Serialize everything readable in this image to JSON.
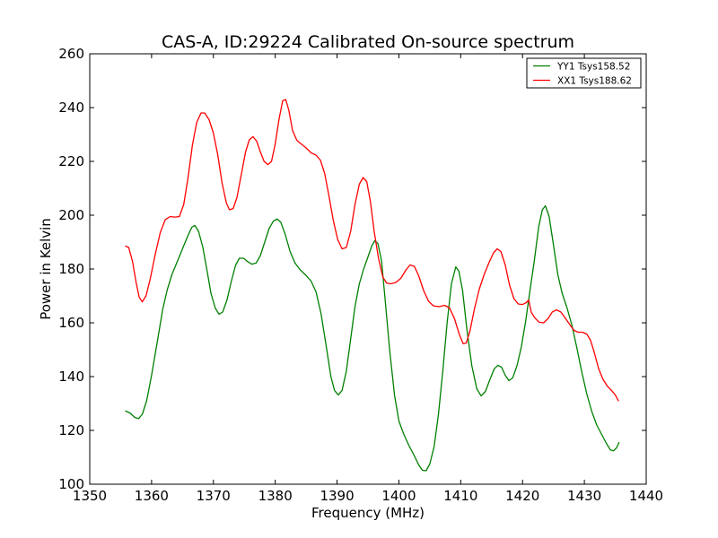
{
  "chart_data": {
    "type": "line",
    "title": "CAS-A, ID:29224 Calibrated On-source spectrum",
    "xlabel": "Frequency (MHz)",
    "ylabel": "Power in Kelvin",
    "xlim": [
      1350,
      1440
    ],
    "ylim": [
      100,
      260
    ],
    "xticks": [
      1350,
      1360,
      1370,
      1380,
      1390,
      1400,
      1410,
      1420,
      1430,
      1440
    ],
    "yticks": [
      100,
      120,
      140,
      160,
      180,
      200,
      220,
      240,
      260
    ],
    "grid": false,
    "legend_position": "top-right",
    "series": [
      {
        "name": "YY1 Tsys158.52",
        "color": "#008000",
        "points": [
          [
            1355.8,
            127.2
          ],
          [
            1356.5,
            126.5
          ],
          [
            1357.3,
            124.8
          ],
          [
            1357.9,
            124.4
          ],
          [
            1358.5,
            126.0
          ],
          [
            1359.2,
            131.0
          ],
          [
            1360.0,
            140.5
          ],
          [
            1361.0,
            154.0
          ],
          [
            1361.8,
            165.0
          ],
          [
            1362.5,
            172.0
          ],
          [
            1363.3,
            178.0
          ],
          [
            1364.2,
            183.0
          ],
          [
            1365.0,
            187.5
          ],
          [
            1365.8,
            192.0
          ],
          [
            1366.5,
            195.5
          ],
          [
            1367.0,
            196.2
          ],
          [
            1367.6,
            194.0
          ],
          [
            1368.3,
            188.0
          ],
          [
            1369.0,
            179.0
          ],
          [
            1369.6,
            171.0
          ],
          [
            1370.3,
            165.5
          ],
          [
            1370.9,
            163.2
          ],
          [
            1371.5,
            164.0
          ],
          [
            1372.2,
            168.5
          ],
          [
            1372.9,
            175.5
          ],
          [
            1373.6,
            181.5
          ],
          [
            1374.2,
            184.0
          ],
          [
            1374.9,
            184.0
          ],
          [
            1375.5,
            182.8
          ],
          [
            1376.2,
            181.8
          ],
          [
            1376.9,
            182.2
          ],
          [
            1377.6,
            185.0
          ],
          [
            1378.3,
            190.0
          ],
          [
            1379.0,
            195.0
          ],
          [
            1379.7,
            197.8
          ],
          [
            1380.3,
            198.6
          ],
          [
            1380.9,
            197.4
          ],
          [
            1381.6,
            193.0
          ],
          [
            1382.4,
            186.5
          ],
          [
            1383.2,
            182.2
          ],
          [
            1384.0,
            179.8
          ],
          [
            1384.9,
            177.8
          ],
          [
            1385.8,
            175.5
          ],
          [
            1386.6,
            171.5
          ],
          [
            1387.4,
            163.5
          ],
          [
            1388.2,
            152.0
          ],
          [
            1389.0,
            140.0
          ],
          [
            1389.6,
            134.8
          ],
          [
            1390.2,
            133.2
          ],
          [
            1390.8,
            134.8
          ],
          [
            1391.5,
            142.0
          ],
          [
            1392.2,
            154.0
          ],
          [
            1392.9,
            166.0
          ],
          [
            1393.6,
            174.5
          ],
          [
            1394.3,
            180.0
          ],
          [
            1395.0,
            184.5
          ],
          [
            1395.6,
            188.5
          ],
          [
            1396.1,
            190.5
          ],
          [
            1396.6,
            189.5
          ],
          [
            1397.2,
            183.0
          ],
          [
            1397.8,
            168.0
          ],
          [
            1398.5,
            150.0
          ],
          [
            1399.3,
            133.0
          ],
          [
            1400.0,
            123.5
          ],
          [
            1400.8,
            118.5
          ],
          [
            1401.6,
            114.5
          ],
          [
            1402.4,
            111.0
          ],
          [
            1403.2,
            107.2
          ],
          [
            1403.8,
            105.2
          ],
          [
            1404.4,
            105.0
          ],
          [
            1405.0,
            107.5
          ],
          [
            1405.7,
            114.0
          ],
          [
            1406.4,
            126.0
          ],
          [
            1407.1,
            142.0
          ],
          [
            1407.8,
            160.0
          ],
          [
            1408.5,
            174.5
          ],
          [
            1409.2,
            180.8
          ],
          [
            1409.7,
            179.2
          ],
          [
            1410.3,
            172.0
          ],
          [
            1411.0,
            157.5
          ],
          [
            1411.8,
            144.0
          ],
          [
            1412.6,
            135.5
          ],
          [
            1413.3,
            132.8
          ],
          [
            1414.0,
            134.5
          ],
          [
            1414.7,
            138.8
          ],
          [
            1415.4,
            142.8
          ],
          [
            1416.0,
            144.2
          ],
          [
            1416.6,
            143.5
          ],
          [
            1417.2,
            140.5
          ],
          [
            1417.8,
            138.5
          ],
          [
            1418.4,
            139.5
          ],
          [
            1419.1,
            144.0
          ],
          [
            1419.8,
            151.0
          ],
          [
            1420.5,
            160.5
          ],
          [
            1421.2,
            172.0
          ],
          [
            1421.9,
            183.0
          ],
          [
            1422.6,
            195.5
          ],
          [
            1423.2,
            202.0
          ],
          [
            1423.7,
            203.5
          ],
          [
            1424.3,
            199.5
          ],
          [
            1425.0,
            189.0
          ],
          [
            1425.7,
            178.0
          ],
          [
            1426.4,
            171.0
          ],
          [
            1427.2,
            165.5
          ],
          [
            1428.0,
            159.0
          ],
          [
            1428.8,
            150.5
          ],
          [
            1429.6,
            141.5
          ],
          [
            1430.4,
            133.5
          ],
          [
            1431.2,
            127.0
          ],
          [
            1432.0,
            122.0
          ],
          [
            1432.8,
            118.5
          ],
          [
            1433.6,
            115.0
          ],
          [
            1434.2,
            112.8
          ],
          [
            1434.7,
            112.4
          ],
          [
            1435.2,
            113.5
          ],
          [
            1435.6,
            115.5
          ]
        ]
      },
      {
        "name": "XX1 Tsys188.62",
        "color": "#ff0000",
        "points": [
          [
            1355.8,
            188.5
          ],
          [
            1356.3,
            188.0
          ],
          [
            1356.9,
            183.0
          ],
          [
            1357.5,
            175.0
          ],
          [
            1358.0,
            169.5
          ],
          [
            1358.5,
            167.8
          ],
          [
            1359.1,
            170.0
          ],
          [
            1359.8,
            176.5
          ],
          [
            1360.6,
            185.5
          ],
          [
            1361.4,
            193.5
          ],
          [
            1362.2,
            198.3
          ],
          [
            1363.0,
            199.5
          ],
          [
            1363.8,
            199.3
          ],
          [
            1364.5,
            199.5
          ],
          [
            1365.2,
            204.0
          ],
          [
            1365.9,
            214.0
          ],
          [
            1366.6,
            226.0
          ],
          [
            1367.3,
            234.5
          ],
          [
            1368.0,
            238.0
          ],
          [
            1368.6,
            238.0
          ],
          [
            1369.3,
            235.5
          ],
          [
            1370.0,
            230.5
          ],
          [
            1370.7,
            222.5
          ],
          [
            1371.4,
            212.0
          ],
          [
            1372.1,
            204.5
          ],
          [
            1372.6,
            202.0
          ],
          [
            1373.2,
            202.5
          ],
          [
            1373.8,
            206.5
          ],
          [
            1374.5,
            215.0
          ],
          [
            1375.2,
            223.5
          ],
          [
            1375.8,
            228.0
          ],
          [
            1376.4,
            229.2
          ],
          [
            1377.0,
            227.5
          ],
          [
            1377.6,
            223.5
          ],
          [
            1378.2,
            220.0
          ],
          [
            1378.8,
            218.8
          ],
          [
            1379.4,
            220.0
          ],
          [
            1380.0,
            226.5
          ],
          [
            1380.6,
            235.5
          ],
          [
            1381.2,
            242.5
          ],
          [
            1381.7,
            243.0
          ],
          [
            1382.2,
            239.0
          ],
          [
            1382.8,
            231.5
          ],
          [
            1383.5,
            227.8
          ],
          [
            1384.2,
            226.5
          ],
          [
            1385.0,
            225.0
          ],
          [
            1385.8,
            223.2
          ],
          [
            1386.6,
            222.3
          ],
          [
            1387.3,
            220.5
          ],
          [
            1388.0,
            215.5
          ],
          [
            1388.7,
            207.0
          ],
          [
            1389.4,
            198.0
          ],
          [
            1390.1,
            191.0
          ],
          [
            1390.8,
            187.5
          ],
          [
            1391.5,
            188.0
          ],
          [
            1392.2,
            194.0
          ],
          [
            1392.9,
            204.0
          ],
          [
            1393.6,
            211.5
          ],
          [
            1394.2,
            214.0
          ],
          [
            1394.8,
            212.5
          ],
          [
            1395.4,
            205.0
          ],
          [
            1396.0,
            194.0
          ],
          [
            1396.7,
            184.0
          ],
          [
            1397.4,
            177.0
          ],
          [
            1398.0,
            174.8
          ],
          [
            1398.7,
            174.5
          ],
          [
            1399.5,
            175.0
          ],
          [
            1400.3,
            176.5
          ],
          [
            1401.1,
            179.5
          ],
          [
            1401.8,
            181.5
          ],
          [
            1402.5,
            181.0
          ],
          [
            1403.2,
            177.5
          ],
          [
            1404.0,
            172.0
          ],
          [
            1404.8,
            168.0
          ],
          [
            1405.6,
            166.3
          ],
          [
            1406.5,
            166.0
          ],
          [
            1407.4,
            166.5
          ],
          [
            1408.2,
            165.5
          ],
          [
            1409.0,
            161.5
          ],
          [
            1409.8,
            155.5
          ],
          [
            1410.4,
            152.2
          ],
          [
            1410.9,
            152.5
          ],
          [
            1411.5,
            157.0
          ],
          [
            1412.2,
            165.0
          ],
          [
            1413.0,
            172.5
          ],
          [
            1413.8,
            178.0
          ],
          [
            1414.6,
            182.5
          ],
          [
            1415.3,
            186.0
          ],
          [
            1415.9,
            187.5
          ],
          [
            1416.5,
            186.5
          ],
          [
            1417.2,
            181.5
          ],
          [
            1417.9,
            174.0
          ],
          [
            1418.6,
            169.0
          ],
          [
            1419.3,
            167.0
          ],
          [
            1420.0,
            166.8
          ],
          [
            1420.6,
            167.5
          ],
          [
            1421.0,
            168.5
          ],
          [
            1421.4,
            164.0
          ],
          [
            1422.0,
            161.8
          ],
          [
            1422.7,
            160.2
          ],
          [
            1423.4,
            160.0
          ],
          [
            1424.1,
            161.5
          ],
          [
            1424.8,
            164.0
          ],
          [
            1425.5,
            164.8
          ],
          [
            1426.2,
            164.0
          ],
          [
            1426.9,
            161.8
          ],
          [
            1427.6,
            159.5
          ],
          [
            1428.3,
            157.2
          ],
          [
            1429.0,
            156.5
          ],
          [
            1429.7,
            156.5
          ],
          [
            1430.4,
            155.8
          ],
          [
            1431.0,
            153.5
          ],
          [
            1431.6,
            149.0
          ],
          [
            1432.3,
            143.0
          ],
          [
            1433.0,
            139.0
          ],
          [
            1433.7,
            136.5
          ],
          [
            1434.4,
            134.8
          ],
          [
            1435.0,
            133.2
          ],
          [
            1435.5,
            131.0
          ]
        ]
      }
    ]
  }
}
